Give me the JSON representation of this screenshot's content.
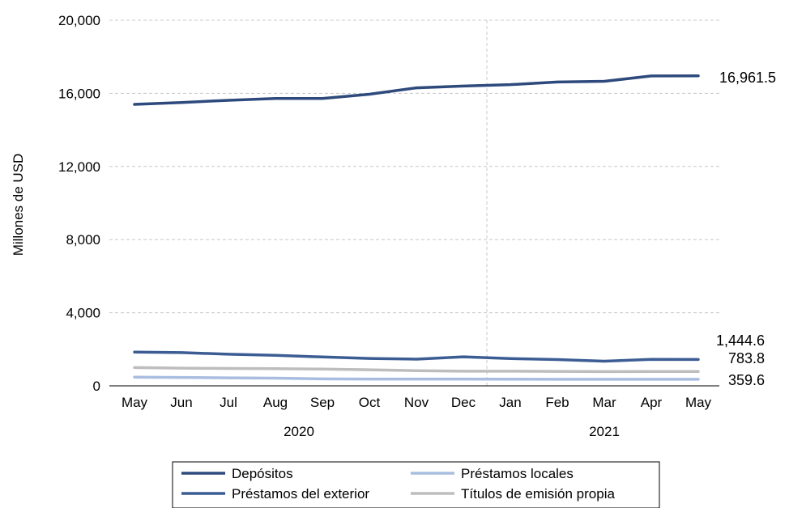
{
  "chart_data": {
    "type": "line",
    "ylabel": "Millones de USD",
    "ylim": [
      0,
      20000
    ],
    "yticks": [
      "0",
      "4,000",
      "8,000",
      "12,000",
      "16,000",
      "20,000"
    ],
    "ytick_values": [
      0,
      4000,
      8000,
      12000,
      16000,
      20000
    ],
    "grid": "horizontal dashed",
    "categories": [
      "May",
      "Jun",
      "Jul",
      "Aug",
      "Sep",
      "Oct",
      "Nov",
      "Dec",
      "Jan",
      "Feb",
      "Mar",
      "Apr",
      "May"
    ],
    "year_labels": [
      "2020",
      "2021"
    ],
    "legend_position": "bottom",
    "series": [
      {
        "name": "Depósitos",
        "color": "#2E4A7D",
        "values": [
          15400,
          15500,
          15620,
          15720,
          15720,
          15950,
          16300,
          16400,
          16480,
          16620,
          16660,
          16950,
          16961.5
        ],
        "end_label": "16,961.5"
      },
      {
        "name": "Préstamos del exterior",
        "color": "#3C5D94",
        "values": [
          1850,
          1820,
          1730,
          1670,
          1580,
          1500,
          1460,
          1590,
          1490,
          1440,
          1350,
          1450,
          1444.6
        ],
        "end_label": "1,444.6"
      },
      {
        "name": "Títulos de emisión propia",
        "color": "#BDBDBD",
        "values": [
          1000,
          970,
          950,
          940,
          920,
          880,
          830,
          800,
          800,
          790,
          780,
          785,
          783.8
        ],
        "end_label": "783.8"
      },
      {
        "name": "Préstamos locales",
        "color": "#A9BDE0",
        "values": [
          480,
          460,
          440,
          420,
          380,
          370,
          370,
          370,
          365,
          360,
          360,
          360,
          359.6
        ],
        "end_label": "359.6"
      }
    ],
    "legend": [
      {
        "series_index": 0,
        "label": "Depósitos"
      },
      {
        "series_index": 3,
        "label": "Préstamos locales"
      },
      {
        "series_index": 1,
        "label": "Préstamos del exterior"
      },
      {
        "series_index": 2,
        "label": "Títulos de emisión propia"
      }
    ]
  }
}
